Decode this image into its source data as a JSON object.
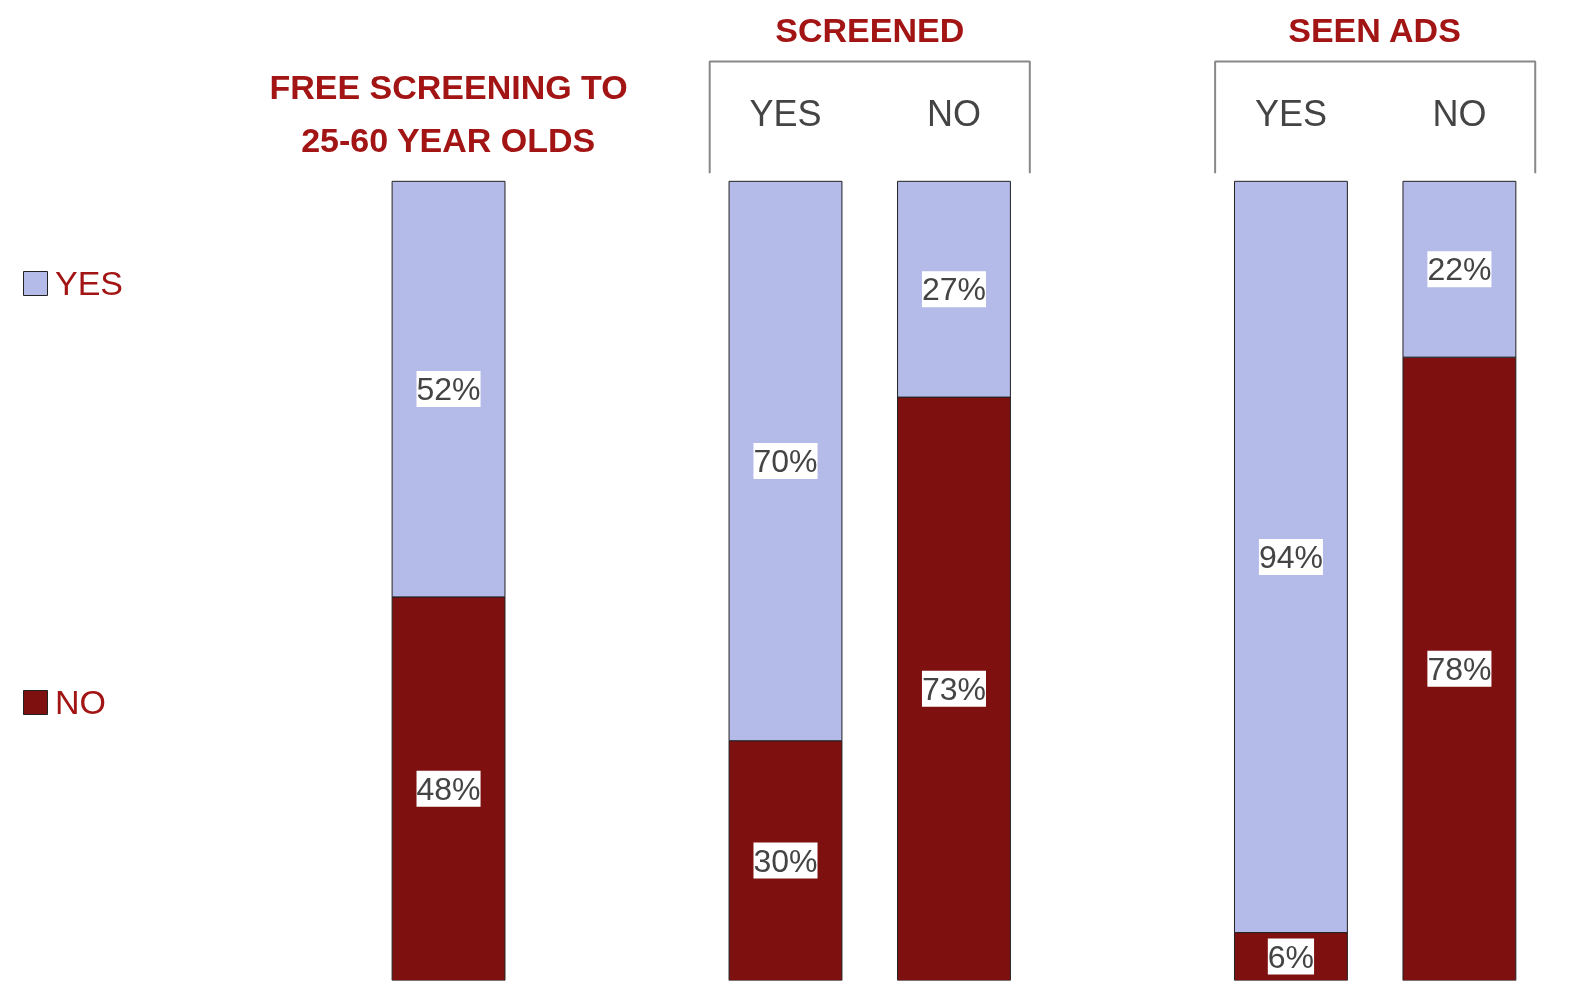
{
  "chart_data": {
    "type": "bar",
    "stacked": true,
    "categories": [
      "FREE SCREENING TO 25-60 YEAR OLDS",
      "YES",
      "NO",
      "YES",
      "NO"
    ],
    "series": [
      {
        "name": "NO",
        "color": "#7e1010",
        "values": [
          48,
          30,
          73,
          6,
          78
        ],
        "value_labels": [
          "48%",
          "30%",
          "73%",
          "6%",
          "78%"
        ]
      },
      {
        "name": "YES",
        "color": "#b5bbe9",
        "values": [
          52,
          70,
          27,
          94,
          22
        ],
        "value_labels": [
          "52%",
          "70%",
          "27%",
          "94%",
          "22%"
        ]
      }
    ],
    "legend": "left",
    "grid": false,
    "annotations": [
      "SCREENED",
      "SEEN ADS"
    ]
  }
}
